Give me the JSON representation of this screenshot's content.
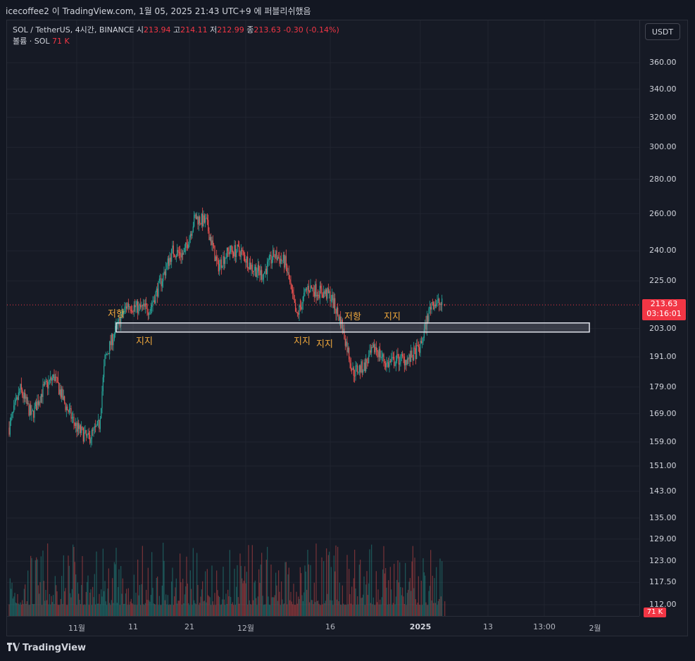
{
  "header": {
    "caption": "icecoffee2 이 TradingView.com, 1월 05, 2025 21:43 UTC+9 에 퍼블리쉬했음"
  },
  "legend": {
    "symbol": "SOL / TetherUS, 4시간, BINANCE",
    "open_label": "시",
    "open": "213.94",
    "high_label": "고",
    "high": "214.11",
    "low_label": "저",
    "low": "212.99",
    "close_label": "종",
    "close": "213.63",
    "change": "-0.30 (-0.14%)",
    "volume_label": "볼륨 · SOL",
    "volume": "71 K"
  },
  "price_scale": {
    "currency_button": "USDT",
    "last_price": "213.63",
    "countdown": "03:16:01",
    "volume_tag": "71 K"
  },
  "annotations": [
    {
      "text": "저항",
      "price": 210,
      "time": "2024-11-08T00:00"
    },
    {
      "text": "지지",
      "price": 198,
      "time": "2024-11-13T00:00"
    },
    {
      "text": "지지",
      "price": 198,
      "time": "2024-12-11T00:00"
    },
    {
      "text": "지지",
      "price": 197,
      "time": "2024-12-15T00:00"
    },
    {
      "text": "저항",
      "price": 209,
      "time": "2024-12-20T00:00"
    },
    {
      "text": "지지",
      "price": 209,
      "time": "2024-12-27T00:00"
    }
  ],
  "footer": {
    "brand": "TradingView"
  },
  "colors": {
    "up": "#26a69a",
    "down": "#ef5350",
    "background": "#161a25",
    "annotation": "#f0a83c",
    "last_price": "#f23645"
  },
  "chart_data": {
    "type": "candlestick",
    "symbol": "SOL / TetherUS",
    "interval": "4시간",
    "exchange": "BINANCE",
    "y_scale": "log",
    "ylim": [
      108,
      380
    ],
    "y_ticks": [
      112.0,
      117.5,
      123.0,
      129.0,
      135.0,
      143.0,
      151.0,
      159.0,
      169.0,
      179.0,
      191.0,
      203.0,
      225.0,
      240.0,
      260.0,
      280.0,
      300.0,
      320.0,
      340.0,
      360.0
    ],
    "x_tick_labels": [
      "11월",
      "11",
      "21",
      "12월",
      "16",
      "2025",
      "13",
      "13:00",
      "2월"
    ],
    "support_resistance_zone": {
      "from_price": 201.5,
      "to_price": 205.5,
      "start": "2024-11-08",
      "end": "2025-01-31"
    },
    "price_anchors": [
      {
        "t": "2024-10-20",
        "p": 164
      },
      {
        "t": "2024-10-22",
        "p": 178
      },
      {
        "t": "2024-10-24",
        "p": 168
      },
      {
        "t": "2024-10-26",
        "p": 178
      },
      {
        "t": "2024-10-28",
        "p": 183
      },
      {
        "t": "2024-10-30",
        "p": 172
      },
      {
        "t": "2024-11-01",
        "p": 164
      },
      {
        "t": "2024-11-03",
        "p": 160
      },
      {
        "t": "2024-11-05",
        "p": 165
      },
      {
        "t": "2024-11-06",
        "p": 190
      },
      {
        "t": "2024-11-08",
        "p": 203
      },
      {
        "t": "2024-11-10",
        "p": 214
      },
      {
        "t": "2024-11-12",
        "p": 212
      },
      {
        "t": "2024-11-14",
        "p": 212
      },
      {
        "t": "2024-11-16",
        "p": 225
      },
      {
        "t": "2024-11-18",
        "p": 240
      },
      {
        "t": "2024-11-20",
        "p": 238
      },
      {
        "t": "2024-11-22",
        "p": 258
      },
      {
        "t": "2024-11-24",
        "p": 255
      },
      {
        "t": "2024-11-26",
        "p": 232
      },
      {
        "t": "2024-11-28",
        "p": 240
      },
      {
        "t": "2024-11-30",
        "p": 240
      },
      {
        "t": "2024-12-02",
        "p": 232
      },
      {
        "t": "2024-12-04",
        "p": 228
      },
      {
        "t": "2024-12-06",
        "p": 238
      },
      {
        "t": "2024-12-08",
        "p": 234
      },
      {
        "t": "2024-12-10",
        "p": 208
      },
      {
        "t": "2024-12-12",
        "p": 222
      },
      {
        "t": "2024-12-14",
        "p": 220
      },
      {
        "t": "2024-12-16",
        "p": 218
      },
      {
        "t": "2024-12-18",
        "p": 205
      },
      {
        "t": "2024-12-20",
        "p": 185
      },
      {
        "t": "2024-12-22",
        "p": 187
      },
      {
        "t": "2024-12-24",
        "p": 195
      },
      {
        "t": "2024-12-26",
        "p": 188
      },
      {
        "t": "2024-12-28",
        "p": 190
      },
      {
        "t": "2024-12-30",
        "p": 190
      },
      {
        "t": "2025-01-01",
        "p": 195
      },
      {
        "t": "2025-01-03",
        "p": 215
      },
      {
        "t": "2025-01-05",
        "p": 213.63
      }
    ],
    "last_candle": {
      "open": 213.94,
      "high": 214.11,
      "low": 212.99,
      "close": 213.63,
      "volume": "71 K"
    }
  }
}
